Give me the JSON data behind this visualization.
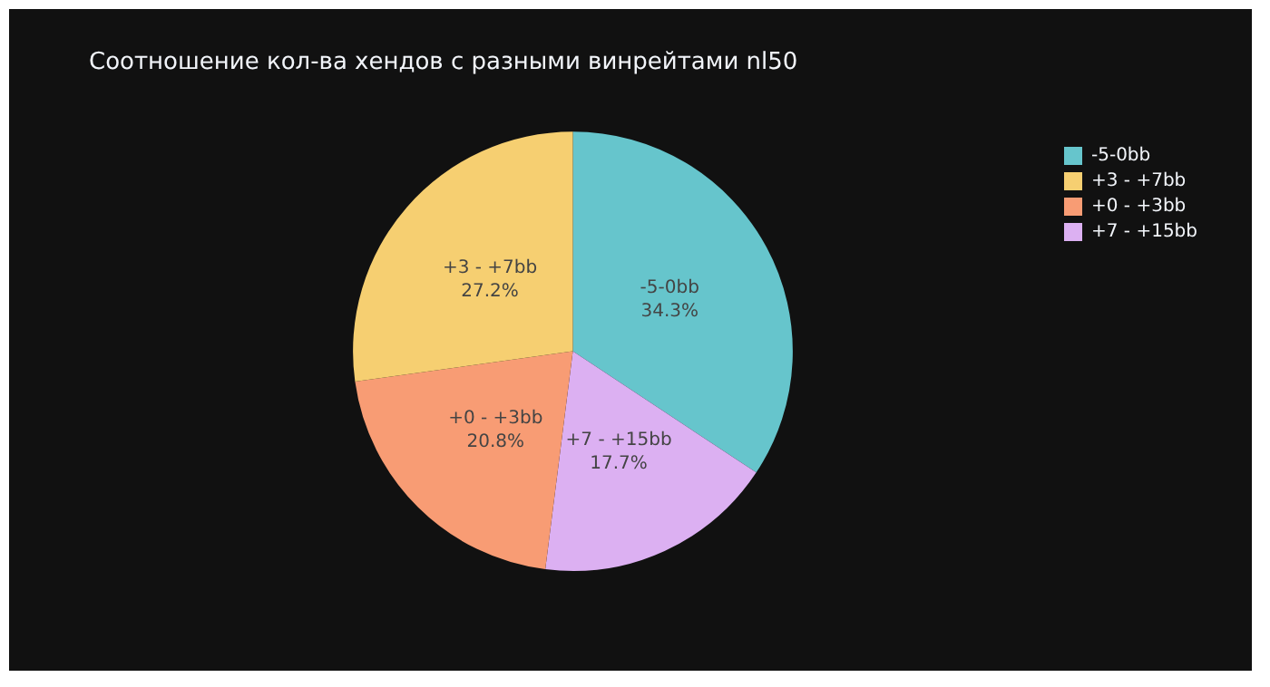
{
  "chart_data": {
    "type": "pie",
    "title": "Соотношение кол-ва хендов с разными винрейтами nl50",
    "categories": [
      "-5-0bb",
      "+7 - +15bb",
      "+0 - +3bb",
      "+3 - +7bb"
    ],
    "values": [
      34.3,
      17.7,
      20.8,
      27.2
    ],
    "colors": [
      "#66c5cc",
      "#dcb0f2",
      "#f89c74",
      "#f6cf71"
    ],
    "value_labels": [
      "34.3%",
      "17.7%",
      "20.8%",
      "27.2%"
    ],
    "legend": "top right"
  }
}
